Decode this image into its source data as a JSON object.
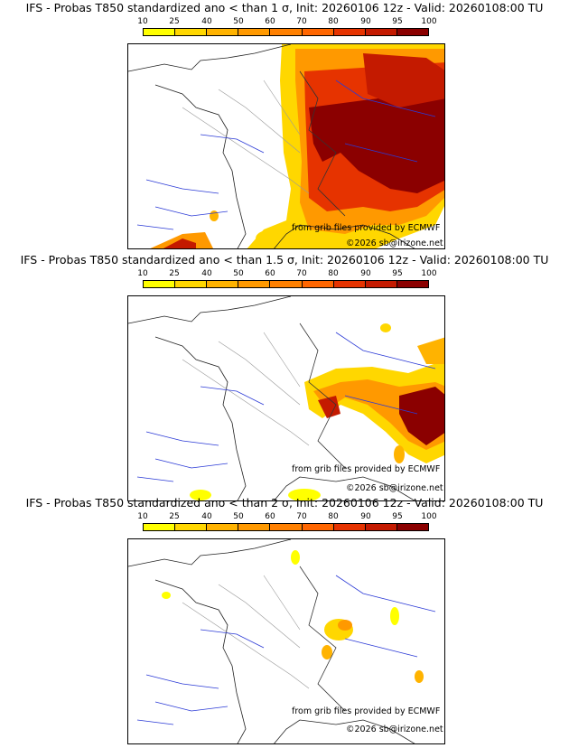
{
  "legend": {
    "ticks": [
      "10",
      "25",
      "40",
      "50",
      "60",
      "70",
      "80",
      "90",
      "95",
      "100"
    ],
    "colors": [
      "#ffff00",
      "#ffd700",
      "#ffb300",
      "#ff9900",
      "#ff8000",
      "#ff6600",
      "#e63300",
      "#c41a00",
      "#8b0000"
    ]
  },
  "panels": [
    {
      "title": "IFS - Probas T850  standardized ano < than 1 σ, Init: 20260106 12z - Valid: 20260108:00 TU",
      "credit_source": "from grib files provided by ECMWF",
      "credit_copyright": "©2026 sb@irizone.net"
    },
    {
      "title": "IFS - Probas T850  standardized ano < than 1.5 σ, Init: 20260106 12z - Valid: 20260108:00 TU",
      "credit_source": "from grib files provided by ECMWF",
      "credit_copyright": "©2026 sb@irizone.net"
    },
    {
      "title": "IFS - Probas T850  standardized ano < than 2 σ, Init: 20260106 12z - Valid: 20260108:00 TU",
      "credit_source": "from grib files provided by ECMWF",
      "credit_copyright": "©2026 sb@irizone.net"
    }
  ]
}
